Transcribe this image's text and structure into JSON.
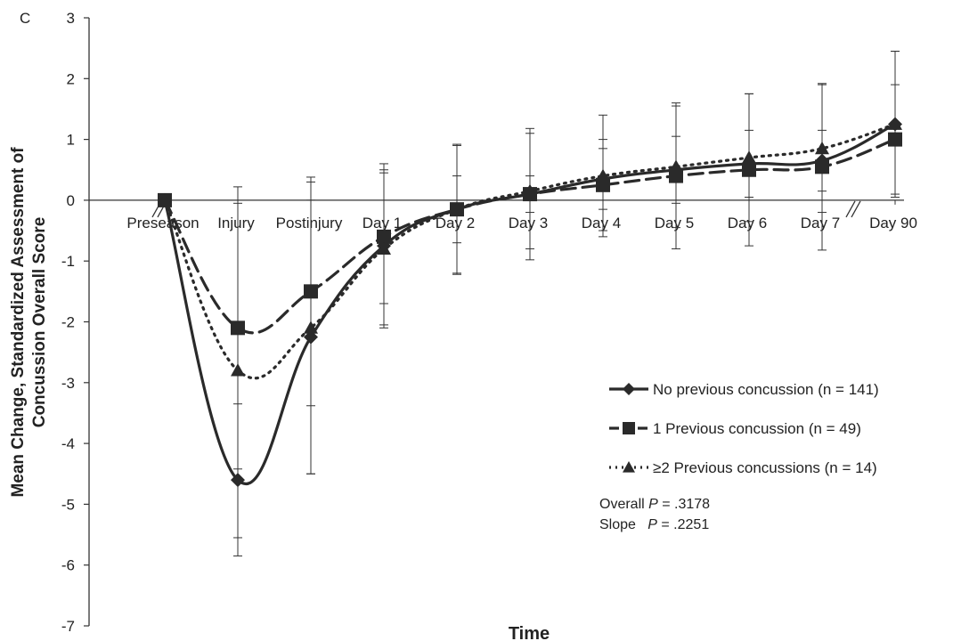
{
  "panel_label": "C",
  "stats": {
    "overall_prefix": "Overall ",
    "overall_p": "P",
    "overall_value": " = .3178",
    "slope_prefix": "Slope   ",
    "slope_p": "P",
    "slope_value": " = .2251"
  },
  "chart_data": {
    "type": "line",
    "title": "",
    "xlabel": "Time",
    "ylabel_lines": [
      "Mean Change, Standardized Assessment of",
      "Concussion Overall Score"
    ],
    "ylim": [
      -7,
      3
    ],
    "yticks": [
      3,
      2,
      1,
      0,
      -1,
      -2,
      -3,
      -4,
      -5,
      -6,
      -7
    ],
    "categories": [
      "Preseason",
      "Injury",
      "Postinjury",
      "Day 1",
      "Day 2",
      "Day 3",
      "Day 4",
      "Day 5",
      "Day 6",
      "Day 7",
      "Day 90"
    ],
    "axis_break_between": [
      "Day 7",
      "Day 90"
    ],
    "legend_position": "right",
    "series": [
      {
        "name": "No previous concussion (n = 141)",
        "marker": "diamond",
        "line": "solid",
        "values": [
          0,
          -4.6,
          -2.25,
          -0.75,
          -0.15,
          0.1,
          0.35,
          0.5,
          0.6,
          0.65,
          1.25
        ],
        "error": [
          0,
          1.25,
          2.25,
          1.35,
          0.55,
          0.3,
          0.5,
          0.55,
          0.55,
          0.5,
          1.2
        ]
      },
      {
        "name": "1 Previous concussion (n = 49)",
        "marker": "square",
        "line": "dashed",
        "values": [
          0,
          -2.1,
          -1.5,
          -0.6,
          -0.15,
          0.1,
          0.25,
          0.4,
          0.5,
          0.55,
          1.0
        ],
        "error": [
          0,
          2.32,
          1.88,
          1.1,
          1.07,
          1.08,
          0.75,
          1.2,
          1.25,
          1.37,
          0.9
        ]
      },
      {
        "name": "≥2 Previous concussions (n = 14)",
        "marker": "triangle",
        "line": "dotted",
        "values": [
          0,
          -2.8,
          -2.1,
          -0.8,
          -0.15,
          0.15,
          0.4,
          0.55,
          0.7,
          0.85,
          1.25
        ],
        "error": [
          0,
          2.75,
          2.4,
          1.25,
          1.05,
          0.95,
          1.0,
          1.0,
          1.05,
          1.05,
          1.2
        ]
      }
    ]
  }
}
